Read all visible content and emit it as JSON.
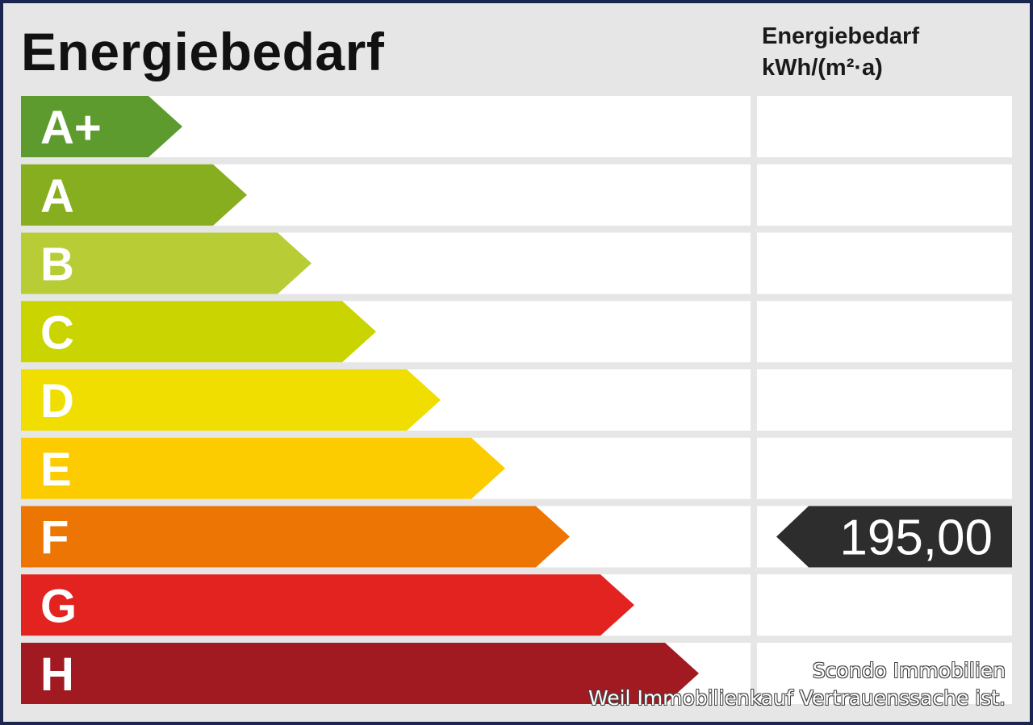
{
  "chart_data": {
    "type": "bar",
    "title": "Energiebedarf",
    "unit_header_lines": [
      "Energiebedarf",
      "kWh/(m²·a)"
    ],
    "categories": [
      "A+",
      "A",
      "B",
      "C",
      "D",
      "E",
      "F",
      "G",
      "H"
    ],
    "colors": [
      "#5e9b2e",
      "#86ae1e",
      "#b7cc35",
      "#cad400",
      "#efde00",
      "#fccc00",
      "#ec7504",
      "#e2231f",
      "#a11a22"
    ],
    "marker": {
      "category": "F",
      "value": "195,00",
      "color": "#2d2d2d"
    }
  },
  "watermark": {
    "line1": "Scondo Immobilien",
    "line2": "Weil Immobilienkauf Vertrauenssache ist."
  }
}
